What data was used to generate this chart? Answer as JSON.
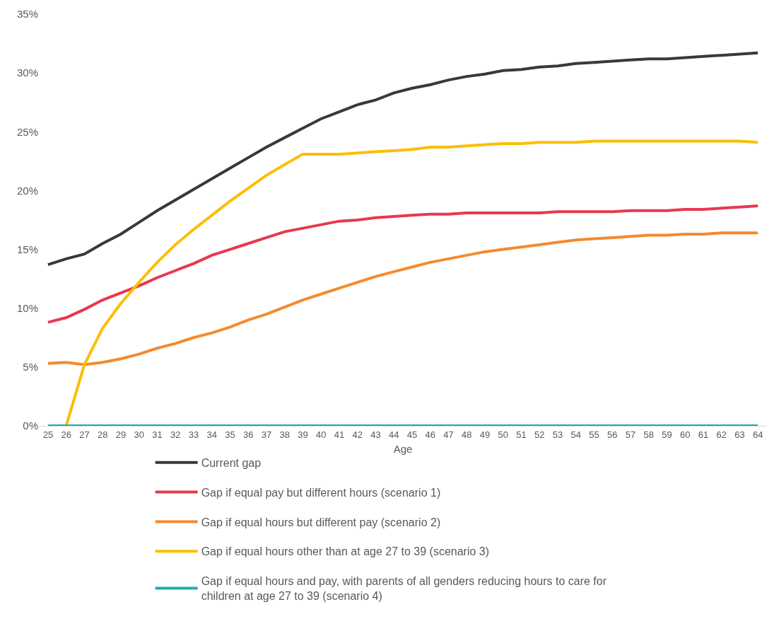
{
  "chart_data": {
    "type": "line",
    "xlabel": "Age",
    "x": [
      25,
      26,
      27,
      28,
      29,
      30,
      31,
      32,
      33,
      34,
      35,
      36,
      37,
      38,
      39,
      40,
      41,
      42,
      43,
      44,
      45,
      46,
      47,
      48,
      49,
      50,
      51,
      52,
      53,
      54,
      55,
      56,
      57,
      58,
      59,
      60,
      61,
      62,
      63,
      64
    ],
    "xlim": [
      24.5,
      64.5
    ],
    "xticks": [
      25,
      26,
      27,
      28,
      29,
      30,
      31,
      32,
      33,
      34,
      35,
      36,
      37,
      38,
      39,
      40,
      41,
      42,
      43,
      44,
      45,
      46,
      47,
      48,
      49,
      50,
      51,
      52,
      53,
      54,
      55,
      56,
      57,
      58,
      59,
      60,
      61,
      62,
      63,
      64
    ],
    "ylim": [
      0,
      35
    ],
    "yticks": [
      {
        "value": 0,
        "label": "0%"
      },
      {
        "value": 5,
        "label": "5%"
      },
      {
        "value": 10,
        "label": "10%"
      },
      {
        "value": 15,
        "label": "15%"
      },
      {
        "value": 20,
        "label": "20%"
      },
      {
        "value": 25,
        "label": "25%"
      },
      {
        "value": 30,
        "label": "30%"
      },
      {
        "value": 35,
        "label": "35%"
      }
    ],
    "legend": "bottom",
    "marker": "none",
    "line_style": "solid",
    "series": [
      {
        "name": "Current gap",
        "color": "#333a40",
        "values": [
          13.7,
          14.2,
          14.6,
          15.5,
          16.3,
          17.3,
          18.3,
          19.2,
          20.1,
          21.0,
          21.9,
          22.8,
          23.7,
          24.5,
          25.3,
          26.1,
          26.7,
          27.3,
          27.7,
          28.3,
          28.7,
          29.0,
          29.4,
          29.7,
          29.9,
          30.2,
          30.3,
          30.5,
          30.6,
          30.8,
          30.9,
          31.0,
          31.1,
          31.2,
          31.2,
          31.3,
          31.4,
          31.5,
          31.6,
          31.7
        ]
      },
      {
        "name": "Gap if equal pay but different hours (scenario 1)",
        "color": "#e8384f",
        "values": [
          8.8,
          9.2,
          9.9,
          10.7,
          11.3,
          11.9,
          12.6,
          13.2,
          13.8,
          14.5,
          15.0,
          15.5,
          16.0,
          16.5,
          16.8,
          17.1,
          17.4,
          17.5,
          17.7,
          17.8,
          17.9,
          18.0,
          18.0,
          18.1,
          18.1,
          18.1,
          18.1,
          18.1,
          18.2,
          18.2,
          18.2,
          18.2,
          18.3,
          18.3,
          18.3,
          18.4,
          18.4,
          18.5,
          18.6,
          18.7
        ]
      },
      {
        "name": "Gap if equal hours but different pay (scenario 2)",
        "color": "#f58a2e",
        "values": [
          5.3,
          5.4,
          5.2,
          5.4,
          5.7,
          6.1,
          6.6,
          7.0,
          7.5,
          7.9,
          8.4,
          9.0,
          9.5,
          10.1,
          10.7,
          11.2,
          11.7,
          12.2,
          12.7,
          13.1,
          13.5,
          13.9,
          14.2,
          14.5,
          14.8,
          15.0,
          15.2,
          15.4,
          15.6,
          15.8,
          15.9,
          16.0,
          16.1,
          16.2,
          16.2,
          16.3,
          16.3,
          16.4,
          16.4,
          16.4
        ]
      },
      {
        "name": "Gap if equal hours other than at age 27 to 39 (scenario 3)",
        "color": "#fbbf00",
        "values": [
          null,
          0,
          5.2,
          8.3,
          10.4,
          12.2,
          13.9,
          15.4,
          16.7,
          17.9,
          19.1,
          20.2,
          21.3,
          22.2,
          23.1,
          23.1,
          23.1,
          23.2,
          23.3,
          23.4,
          23.5,
          23.7,
          23.7,
          23.8,
          23.9,
          24.0,
          24.0,
          24.1,
          24.1,
          24.1,
          24.2,
          24.2,
          24.2,
          24.2,
          24.2,
          24.2,
          24.2,
          24.2,
          24.2,
          24.1
        ]
      },
      {
        "name": "Gap if equal hours and pay, with parents of all genders reducing hours to care for children at age 27 to 39 (scenario 4)",
        "color": "#1aafb0",
        "values": [
          0,
          0,
          0,
          0,
          0,
          0,
          0,
          0,
          0,
          0,
          0,
          0,
          0,
          0,
          0,
          0,
          0,
          0,
          0,
          0,
          0,
          0,
          0,
          0,
          0,
          0,
          0,
          0,
          0,
          0,
          0,
          0,
          0,
          0,
          0,
          0,
          0,
          0,
          0,
          0
        ]
      }
    ]
  }
}
